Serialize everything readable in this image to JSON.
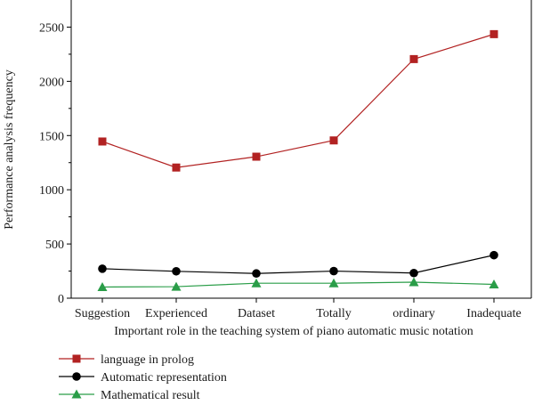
{
  "chart_data": {
    "type": "line",
    "xlabel": "Important role in the teaching system of piano automatic music notation",
    "ylabel": "Performance analysis frequency",
    "categories": [
      "Suggestion",
      "Experienced",
      "Dataset",
      "Totally",
      "ordinary",
      "Inadequate"
    ],
    "ylim": [
      0,
      2750
    ],
    "yticks": [
      0,
      500,
      1000,
      1500,
      2000,
      2500
    ],
    "grid": false,
    "legend_position": "bottom-left",
    "series": [
      {
        "name": "language in prolog",
        "values": [
          1445,
          1205,
          1305,
          1455,
          2205,
          2435
        ],
        "color": "#b22222",
        "marker": "square"
      },
      {
        "name": "Automatic representation",
        "values": [
          272,
          248,
          228,
          250,
          232,
          397
        ],
        "color": "#000000",
        "marker": "circle"
      },
      {
        "name": "Mathematical result",
        "values": [
          103,
          106,
          138,
          138,
          148,
          127
        ],
        "color": "#2a9d48",
        "marker": "triangle"
      }
    ]
  }
}
